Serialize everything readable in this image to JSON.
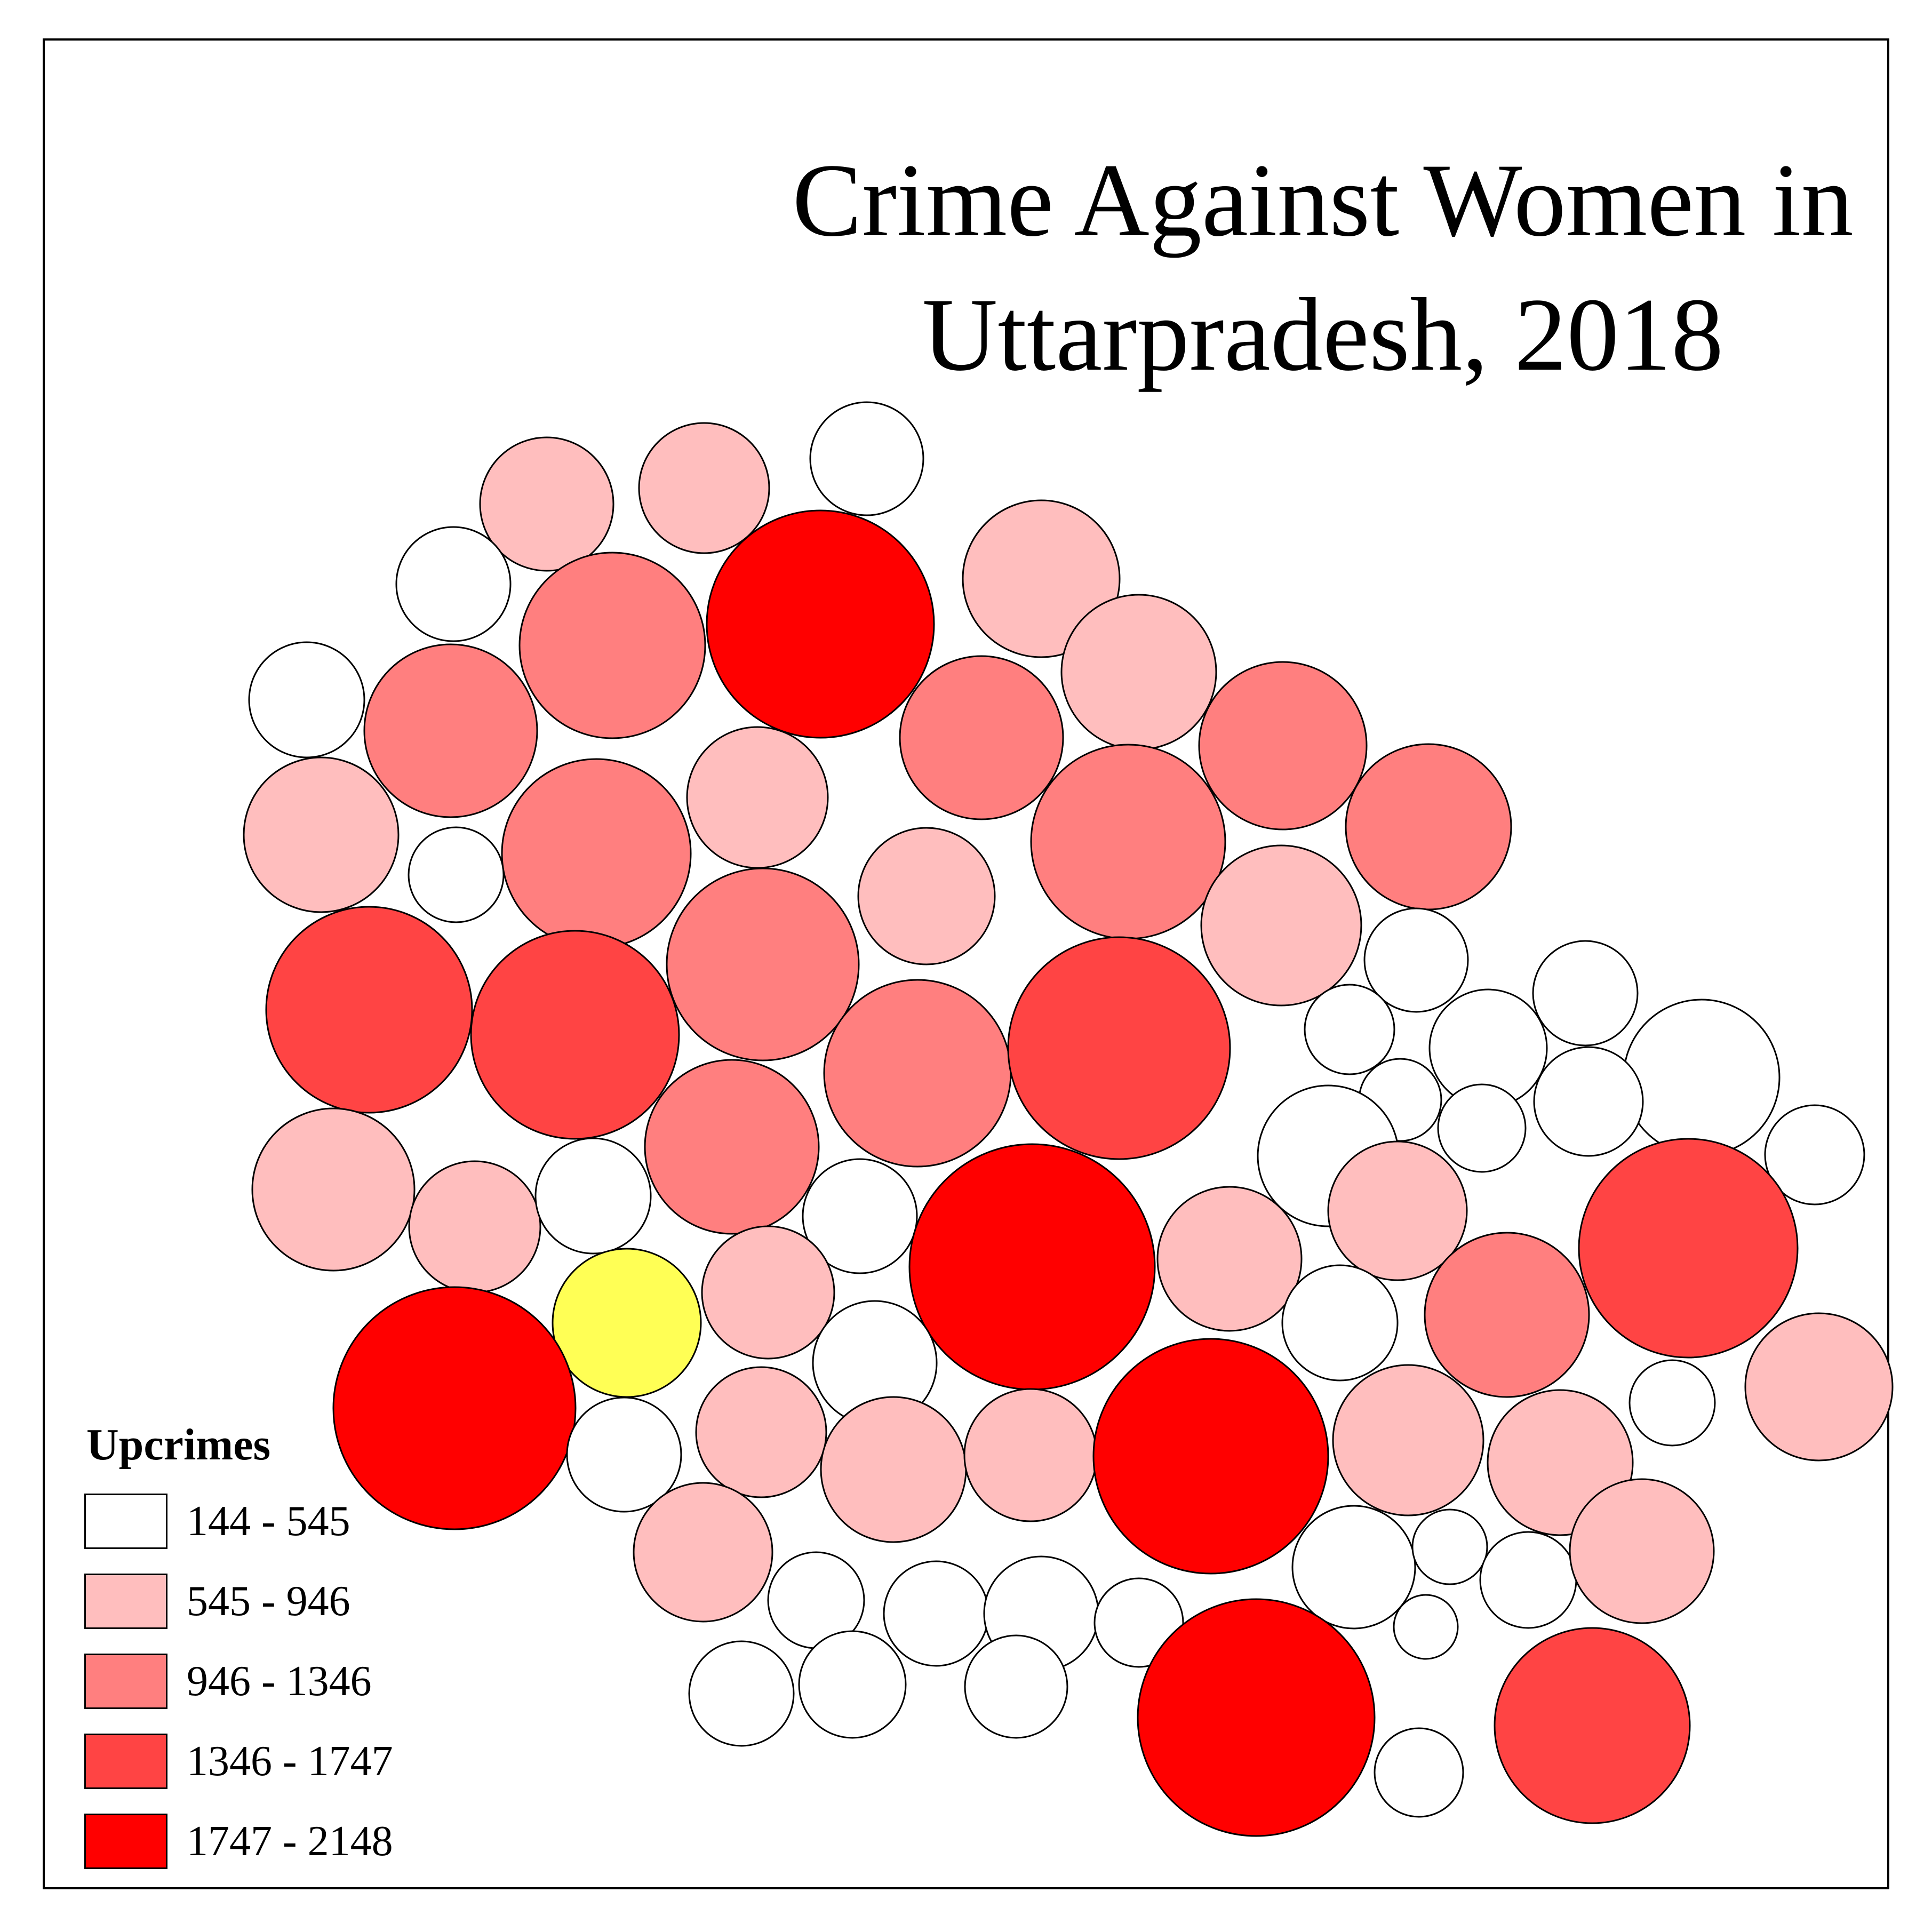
{
  "map": {
    "title_line1": "Crime Against Women in",
    "title_line2": "Uttarpradesh, 2018"
  },
  "legend": {
    "title": "Upcrimes",
    "classes": [
      {
        "label": "144 - 545",
        "color": "#ffffff"
      },
      {
        "label": "545 - 946",
        "color": "#ffbebe"
      },
      {
        "label": "946 - 1346",
        "color": "#ff7f7f"
      },
      {
        "label": "1346 - 1747",
        "color": "#ff4444"
      },
      {
        "label": "1747 - 2148",
        "color": "#ff0000"
      }
    ]
  },
  "highlight_color": "#ffff55",
  "chart_data": {
    "type": "proportional-circle cartogram",
    "measure": "Upcrimes",
    "legend_class_counts": {
      "144 - 545": 31,
      "545 - 946": 26,
      "946 - 1346": 13,
      "1346 - 1747": 6,
      "1747 - 2148": 6
    },
    "highlighted_units": 1
  }
}
